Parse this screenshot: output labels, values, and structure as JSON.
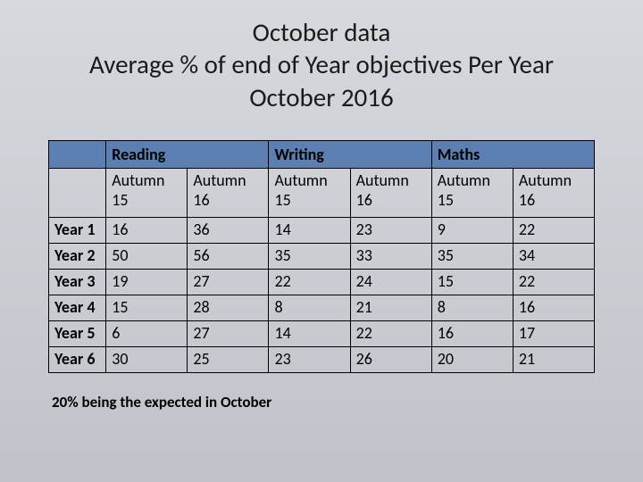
{
  "title_lines": {
    "l1": "October data",
    "l2": "Average % of end of Year objectives Per Year",
    "l3": "October 2016"
  },
  "subjects": {
    "reading": "Reading",
    "writing": "Writing",
    "maths": "Maths"
  },
  "term_headers": {
    "a15": "Autumn 15",
    "a16": "Autumn 16"
  },
  "row_labels": {
    "y1": "Year 1",
    "y2": "Year 2",
    "y3": "Year 3",
    "y4": "Year 4",
    "y5": "Year 5",
    "y6": "Year 6"
  },
  "table": {
    "y1": {
      "r_a15": "16",
      "r_a16": "36",
      "w_a15": "14",
      "w_a16": "23",
      "m_a15": "9",
      "m_a16": "22"
    },
    "y2": {
      "r_a15": "50",
      "r_a16": "56",
      "w_a15": "35",
      "w_a16": "33",
      "m_a15": "35",
      "m_a16": "34"
    },
    "y3": {
      "r_a15": "19",
      "r_a16": "27",
      "w_a15": "22",
      "w_a16": "24",
      "m_a15": "15",
      "m_a16": "22"
    },
    "y4": {
      "r_a15": "15",
      "r_a16": "28",
      "w_a15": "8",
      "w_a16": "21",
      "m_a15": "8",
      "m_a16": "16"
    },
    "y5": {
      "r_a15": "6",
      "r_a16": "27",
      "w_a15": "14",
      "w_a16": "22",
      "m_a15": "16",
      "m_a16": "17"
    },
    "y6": {
      "r_a15": "30",
      "r_a16": "25",
      "w_a15": "23",
      "w_a16": "26",
      "m_a15": "20",
      "m_a16": "21"
    }
  },
  "note": "20% being the expected in October",
  "colors": {
    "header_bg": "#5a7fb0",
    "page_bg_top": "#d6d9de",
    "page_bg_bottom": "#c0c3c9",
    "border": "#000000"
  }
}
